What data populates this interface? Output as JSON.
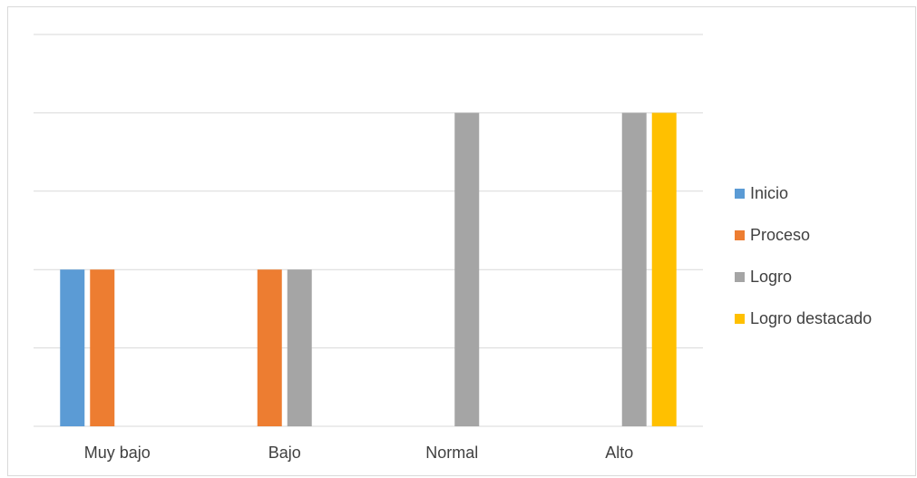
{
  "chart_data": {
    "type": "bar",
    "categories": [
      "Muy bajo",
      "Bajo",
      "Normal",
      "Alto"
    ],
    "series": [
      {
        "name": "Inicio",
        "color": "#5b9bd5",
        "values": [
          2,
          0,
          0,
          0
        ]
      },
      {
        "name": "Proceso",
        "color": "#ed7d31",
        "values": [
          2,
          2,
          0,
          0
        ]
      },
      {
        "name": "Logro",
        "color": "#a5a5a5",
        "values": [
          0,
          2,
          4,
          4
        ]
      },
      {
        "name": "Logro destacado",
        "color": "#ffc000",
        "values": [
          0,
          0,
          0,
          4
        ]
      }
    ],
    "ylim": [
      0,
      5
    ],
    "grid": true,
    "legend": "right"
  }
}
